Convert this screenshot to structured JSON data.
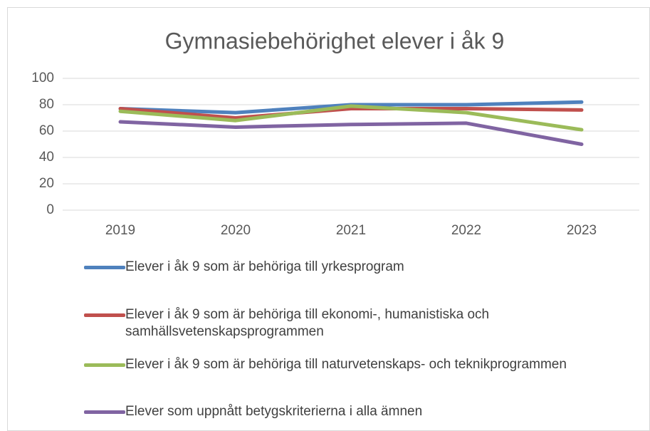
{
  "chart_data": {
    "type": "line",
    "title": "Gymnasiebehörighet elever i åk 9",
    "categories": [
      "2019",
      "2020",
      "2021",
      "2022",
      "2023"
    ],
    "series": [
      {
        "name": "Elever i åk 9 som är behöriga till yrkesprogram",
        "color": "#4f81bd",
        "values": [
          77,
          74,
          80,
          80,
          82
        ]
      },
      {
        "name": "Elever i åk 9 som är behöriga till ekonomi-, humanistiska och samhällsvetenskapsprogrammen",
        "color": "#c0504d",
        "values": [
          77,
          70,
          77,
          77,
          76
        ]
      },
      {
        "name": "Elever i åk 9 som är behöriga till naturvetenskaps- och teknikprogrammen",
        "color": "#9bbb59",
        "values": [
          75,
          68,
          79,
          74,
          61
        ]
      },
      {
        "name": "Elever som uppnått betygskriterierna i alla ämnen",
        "color": "#8064a2",
        "values": [
          67,
          63,
          65,
          66,
          50
        ]
      }
    ],
    "ylim": [
      0,
      100
    ],
    "yticks": [
      0,
      20,
      40,
      60,
      80,
      100
    ],
    "grid": true,
    "legend": "bottom"
  }
}
